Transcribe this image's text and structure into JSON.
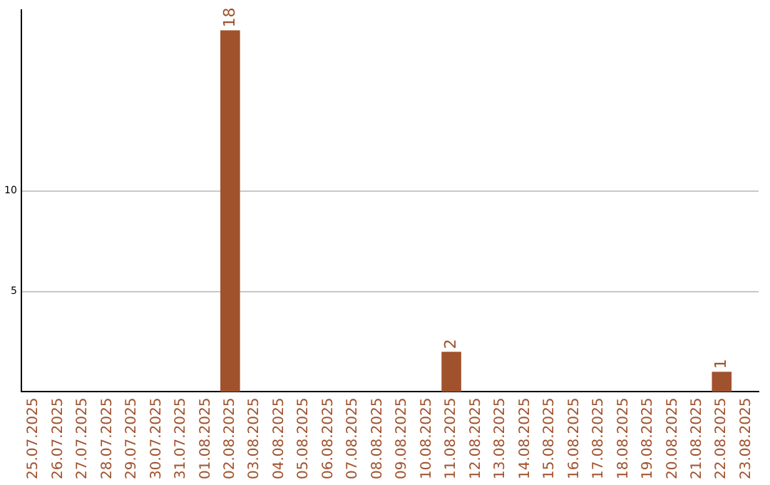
{
  "chart_data": {
    "type": "bar",
    "categories": [
      "25.07.2025",
      "26.07.2025",
      "27.07.2025",
      "28.07.2025",
      "29.07.2025",
      "30.07.2025",
      "31.07.2025",
      "01.08.2025",
      "02.08.2025",
      "03.08.2025",
      "04.08.2025",
      "05.08.2025",
      "06.08.2025",
      "07.08.2025",
      "08.08.2025",
      "09.08.2025",
      "10.08.2025",
      "11.08.2025",
      "12.08.2025",
      "13.08.2025",
      "14.08.2025",
      "15.08.2025",
      "16.08.2025",
      "17.08.2025",
      "18.08.2025",
      "19.08.2025",
      "20.08.2025",
      "21.08.2025",
      "22.08.2025",
      "23.08.2025"
    ],
    "values": [
      0,
      0,
      0,
      0,
      0,
      0,
      0,
      0,
      18,
      0,
      0,
      0,
      0,
      0,
      0,
      0,
      0,
      2,
      0,
      0,
      0,
      0,
      0,
      0,
      0,
      0,
      0,
      0,
      1,
      0
    ],
    "value_labels": [
      null,
      null,
      null,
      null,
      null,
      null,
      null,
      null,
      "18",
      null,
      null,
      null,
      null,
      null,
      null,
      null,
      null,
      "2",
      null,
      null,
      null,
      null,
      null,
      null,
      null,
      null,
      null,
      null,
      "1",
      null
    ],
    "color": "#a0522d",
    "ylim": [
      0,
      19
    ],
    "yticks": [
      5,
      10
    ],
    "grid": "y"
  }
}
